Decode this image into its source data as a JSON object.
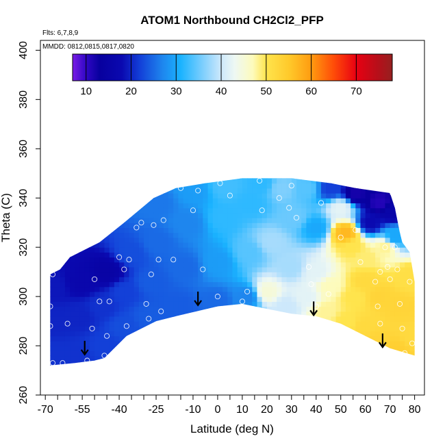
{
  "chart_data": {
    "type": "heatmap",
    "title": "ATOM1 Northbound CH2Cl2_PFP",
    "flights_note": "Flts: 6,7,8,9",
    "dates_note": "MMDD: 0812,0815,0817,0820",
    "xlabel": "Latitude (deg N)",
    "ylabel": "Theta (C)",
    "xlim": [
      -72,
      84
    ],
    "ylim": [
      260,
      404
    ],
    "x_ticks": [
      -70,
      -55,
      -40,
      -25,
      -10,
      0,
      10,
      20,
      30,
      40,
      50,
      60,
      70,
      80
    ],
    "x_tick_labels": [
      "-70",
      "-55",
      "-40",
      "-25",
      "-10",
      "0",
      "10",
      "20",
      "30",
      "40",
      "50",
      "60",
      "70",
      "80"
    ],
    "x_minor_ticks": [
      -65,
      -60,
      -50,
      -45,
      -35,
      -30,
      -20,
      -15,
      -5,
      5,
      15,
      25,
      35,
      45,
      55,
      65,
      75,
      85
    ],
    "y_ticks": [
      260,
      280,
      300,
      320,
      340,
      360,
      380,
      400
    ],
    "y_tick_labels": [
      "260",
      "280",
      "300",
      "320",
      "340",
      "360",
      "380",
      "400"
    ],
    "colorbar": {
      "range": [
        7,
        78
      ],
      "ticks": [
        10,
        20,
        30,
        40,
        50,
        60,
        70
      ],
      "tick_labels": [
        "10",
        "20",
        "30",
        "40",
        "50",
        "60",
        "70"
      ],
      "stops": [
        {
          "v": 7,
          "c": "#7a1ce6"
        },
        {
          "v": 10,
          "c": "#2f07c4"
        },
        {
          "v": 13,
          "c": "#08009e"
        },
        {
          "v": 18,
          "c": "#0a09b0"
        },
        {
          "v": 22,
          "c": "#1340d8"
        },
        {
          "v": 27,
          "c": "#1e86ee"
        },
        {
          "v": 31,
          "c": "#1ab3ff"
        },
        {
          "v": 36,
          "c": "#7fcffd"
        },
        {
          "v": 40,
          "c": "#cde8fb"
        },
        {
          "v": 43,
          "c": "#eef8f3"
        },
        {
          "v": 47,
          "c": "#fdfbbd"
        },
        {
          "v": 50,
          "c": "#ffe44d"
        },
        {
          "v": 55,
          "c": "#ffca2b"
        },
        {
          "v": 60,
          "c": "#ff9b10"
        },
        {
          "v": 65,
          "c": "#ff4c08"
        },
        {
          "v": 70,
          "c": "#e80012"
        },
        {
          "v": 75,
          "c": "#b4101a"
        },
        {
          "v": 78,
          "c": "#962020"
        }
      ]
    },
    "field_anchors": [
      {
        "x": -67,
        "y": 276,
        "v": 21
      },
      {
        "x": -67,
        "y": 290,
        "v": 20
      },
      {
        "x": -67,
        "y": 304,
        "v": 19
      },
      {
        "x": -58,
        "y": 276,
        "v": 21
      },
      {
        "x": -56,
        "y": 292,
        "v": 20
      },
      {
        "x": -55,
        "y": 306,
        "v": 17
      },
      {
        "x": -46,
        "y": 280,
        "v": 22
      },
      {
        "x": -47,
        "y": 296,
        "v": 21
      },
      {
        "x": -45,
        "y": 310,
        "v": 15
      },
      {
        "x": -38,
        "y": 288,
        "v": 23
      },
      {
        "x": -38,
        "y": 302,
        "v": 22
      },
      {
        "x": -35,
        "y": 318,
        "v": 23
      },
      {
        "x": -28,
        "y": 292,
        "v": 24
      },
      {
        "x": -27,
        "y": 306,
        "v": 24
      },
      {
        "x": -25,
        "y": 322,
        "v": 25
      },
      {
        "x": -24,
        "y": 338,
        "v": 26
      },
      {
        "x": -15,
        "y": 296,
        "v": 24
      },
      {
        "x": -13,
        "y": 312,
        "v": 25
      },
      {
        "x": -12,
        "y": 330,
        "v": 27
      },
      {
        "x": -10,
        "y": 343,
        "v": 29
      },
      {
        "x": 0,
        "y": 298,
        "v": 25
      },
      {
        "x": 0,
        "y": 314,
        "v": 29
      },
      {
        "x": 2,
        "y": 332,
        "v": 32
      },
      {
        "x": 3,
        "y": 345,
        "v": 33
      },
      {
        "x": 12,
        "y": 300,
        "v": 27
      },
      {
        "x": 13,
        "y": 318,
        "v": 34
      },
      {
        "x": 14,
        "y": 338,
        "v": 32
      },
      {
        "x": 18,
        "y": 346,
        "v": 32
      },
      {
        "x": 20,
        "y": 302,
        "v": 45
      },
      {
        "x": 22,
        "y": 322,
        "v": 38
      },
      {
        "x": 26,
        "y": 344,
        "v": 36
      },
      {
        "x": 28,
        "y": 296,
        "v": 40
      },
      {
        "x": 30,
        "y": 312,
        "v": 38
      },
      {
        "x": 31,
        "y": 332,
        "v": 35
      },
      {
        "x": 36,
        "y": 344,
        "v": 34
      },
      {
        "x": 36,
        "y": 300,
        "v": 42
      },
      {
        "x": 40,
        "y": 310,
        "v": 42
      },
      {
        "x": 40,
        "y": 328,
        "v": 30
      },
      {
        "x": 44,
        "y": 294,
        "v": 48
      },
      {
        "x": 46,
        "y": 304,
        "v": 47
      },
      {
        "x": 46,
        "y": 344,
        "v": 22
      },
      {
        "x": 50,
        "y": 336,
        "v": 42
      },
      {
        "x": 52,
        "y": 290,
        "v": 50
      },
      {
        "x": 52,
        "y": 326,
        "v": 57
      },
      {
        "x": 55,
        "y": 300,
        "v": 50
      },
      {
        "x": 55,
        "y": 320,
        "v": 50
      },
      {
        "x": 56,
        "y": 342,
        "v": 12
      },
      {
        "x": 60,
        "y": 288,
        "v": 52
      },
      {
        "x": 60,
        "y": 306,
        "v": 52
      },
      {
        "x": 60,
        "y": 316,
        "v": 49
      },
      {
        "x": 62,
        "y": 330,
        "v": 18
      },
      {
        "x": 66,
        "y": 338,
        "v": 11
      },
      {
        "x": 64,
        "y": 282,
        "v": 53
      },
      {
        "x": 66,
        "y": 300,
        "v": 53
      },
      {
        "x": 68,
        "y": 320,
        "v": 48
      },
      {
        "x": 71,
        "y": 335,
        "v": 16
      },
      {
        "x": 72,
        "y": 324,
        "v": 30
      },
      {
        "x": 72,
        "y": 278,
        "v": 54
      },
      {
        "x": 74,
        "y": 296,
        "v": 53
      },
      {
        "x": 78,
        "y": 308,
        "v": 51
      },
      {
        "x": 80,
        "y": 284,
        "v": 52
      }
    ],
    "coverage_upper": [
      [
        -68,
        309
      ],
      [
        -64,
        311
      ],
      [
        -60,
        316
      ],
      [
        -48,
        322
      ],
      [
        -38,
        330
      ],
      [
        -26,
        340
      ],
      [
        -17,
        344
      ],
      [
        -5,
        346
      ],
      [
        10,
        348
      ],
      [
        30,
        348
      ],
      [
        46,
        346
      ],
      [
        56,
        344
      ],
      [
        70,
        342
      ],
      [
        72,
        336
      ],
      [
        74,
        326
      ],
      [
        75,
        322
      ],
      [
        78,
        318
      ],
      [
        79,
        312
      ],
      [
        80,
        306
      ]
    ],
    "coverage_lower": [
      [
        -68,
        272
      ],
      [
        -58,
        273
      ],
      [
        -50,
        274
      ],
      [
        -46,
        275
      ],
      [
        -37,
        284
      ],
      [
        -25,
        290
      ],
      [
        -17,
        292
      ],
      [
        0,
        296
      ],
      [
        10,
        297
      ],
      [
        20,
        295
      ],
      [
        30,
        293
      ],
      [
        40,
        292
      ],
      [
        50,
        289
      ],
      [
        60,
        284
      ],
      [
        70,
        279
      ],
      [
        80,
        276
      ]
    ],
    "samples": [
      [
        -68,
        296
      ],
      [
        -68,
        288
      ],
      [
        -67,
        273
      ],
      [
        -67,
        309
      ],
      [
        -63,
        273
      ],
      [
        -61,
        289
      ],
      [
        -53,
        274
      ],
      [
        -51,
        287
      ],
      [
        -50,
        307
      ],
      [
        -48,
        298
      ],
      [
        -46,
        276
      ],
      [
        -45,
        284
      ],
      [
        -44,
        298
      ],
      [
        -40,
        316
      ],
      [
        -38,
        311
      ],
      [
        -37,
        288
      ],
      [
        -36,
        315
      ],
      [
        -33,
        328
      ],
      [
        -31,
        330
      ],
      [
        -29,
        297
      ],
      [
        -28,
        291
      ],
      [
        -27,
        309
      ],
      [
        -26,
        329
      ],
      [
        -24,
        315
      ],
      [
        -23,
        294
      ],
      [
        -22,
        331
      ],
      [
        -18,
        315
      ],
      [
        -15,
        344
      ],
      [
        -10,
        335
      ],
      [
        -8,
        343
      ],
      [
        -6,
        311
      ],
      [
        0,
        300
      ],
      [
        1,
        346
      ],
      [
        5,
        341
      ],
      [
        10,
        298
      ],
      [
        12,
        302
      ],
      [
        17,
        347
      ],
      [
        18,
        335
      ],
      [
        25,
        340
      ],
      [
        29,
        336
      ],
      [
        30,
        345
      ],
      [
        32,
        332
      ],
      [
        37,
        312
      ],
      [
        38,
        305
      ],
      [
        40,
        296
      ],
      [
        42,
        338
      ],
      [
        45,
        301
      ],
      [
        50,
        324
      ],
      [
        56,
        327
      ],
      [
        58,
        314
      ],
      [
        64,
        306
      ],
      [
        65,
        296
      ],
      [
        66,
        289
      ],
      [
        66,
        310
      ],
      [
        68,
        320
      ],
      [
        69,
        312
      ],
      [
        70,
        307
      ],
      [
        71,
        342
      ],
      [
        72,
        320
      ],
      [
        73,
        311
      ],
      [
        74,
        297
      ],
      [
        75,
        287
      ],
      [
        76,
        277
      ],
      [
        78,
        306
      ],
      [
        79,
        281
      ]
    ],
    "arrows": [
      [
        -54,
        282
      ],
      [
        -8,
        302
      ],
      [
        39,
        298
      ],
      [
        67,
        285
      ]
    ]
  }
}
